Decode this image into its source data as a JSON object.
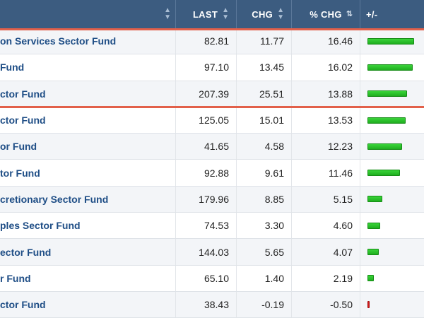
{
  "header": {
    "name_label": "",
    "last_label": "LAST",
    "chg_label": "CHG",
    "pct_chg_label": "% CHG",
    "bar_label": "+/-"
  },
  "colors": {
    "header_bg": "#3c5c80",
    "positive_bar": "#22c022",
    "negative_bar": "#d11a1a",
    "highlight": "#e2604a",
    "name_text": "#1f4e86"
  },
  "rows": [
    {
      "name": "on Services Sector Fund",
      "last": "82.81",
      "chg": "11.77",
      "pct": "16.46",
      "pct_value": 16.46
    },
    {
      "name": "Fund",
      "last": "97.10",
      "chg": "13.45",
      "pct": "16.02",
      "pct_value": 16.02
    },
    {
      "name": "ctor Fund",
      "last": "207.39",
      "chg": "25.51",
      "pct": "13.88",
      "pct_value": 13.88
    },
    {
      "name": "ctor Fund",
      "last": "125.05",
      "chg": "15.01",
      "pct": "13.53",
      "pct_value": 13.53
    },
    {
      "name": "or Fund",
      "last": "41.65",
      "chg": "4.58",
      "pct": "12.23",
      "pct_value": 12.23
    },
    {
      "name": "tor Fund",
      "last": "92.88",
      "chg": "9.61",
      "pct": "11.46",
      "pct_value": 11.46
    },
    {
      "name": "cretionary Sector Fund",
      "last": "179.96",
      "chg": "8.85",
      "pct": "5.15",
      "pct_value": 5.15
    },
    {
      "name": "ples Sector Fund",
      "last": "74.53",
      "chg": "3.30",
      "pct": "4.60",
      "pct_value": 4.6
    },
    {
      "name": "ector Fund",
      "last": "144.03",
      "chg": "5.65",
      "pct": "4.07",
      "pct_value": 4.07
    },
    {
      "name": "r Fund",
      "last": "65.10",
      "chg": "1.40",
      "pct": "2.19",
      "pct_value": 2.19
    },
    {
      "name": "ctor Fund",
      "last": "38.43",
      "chg": "-0.19",
      "pct": "-0.50",
      "pct_value": -0.5
    }
  ]
}
